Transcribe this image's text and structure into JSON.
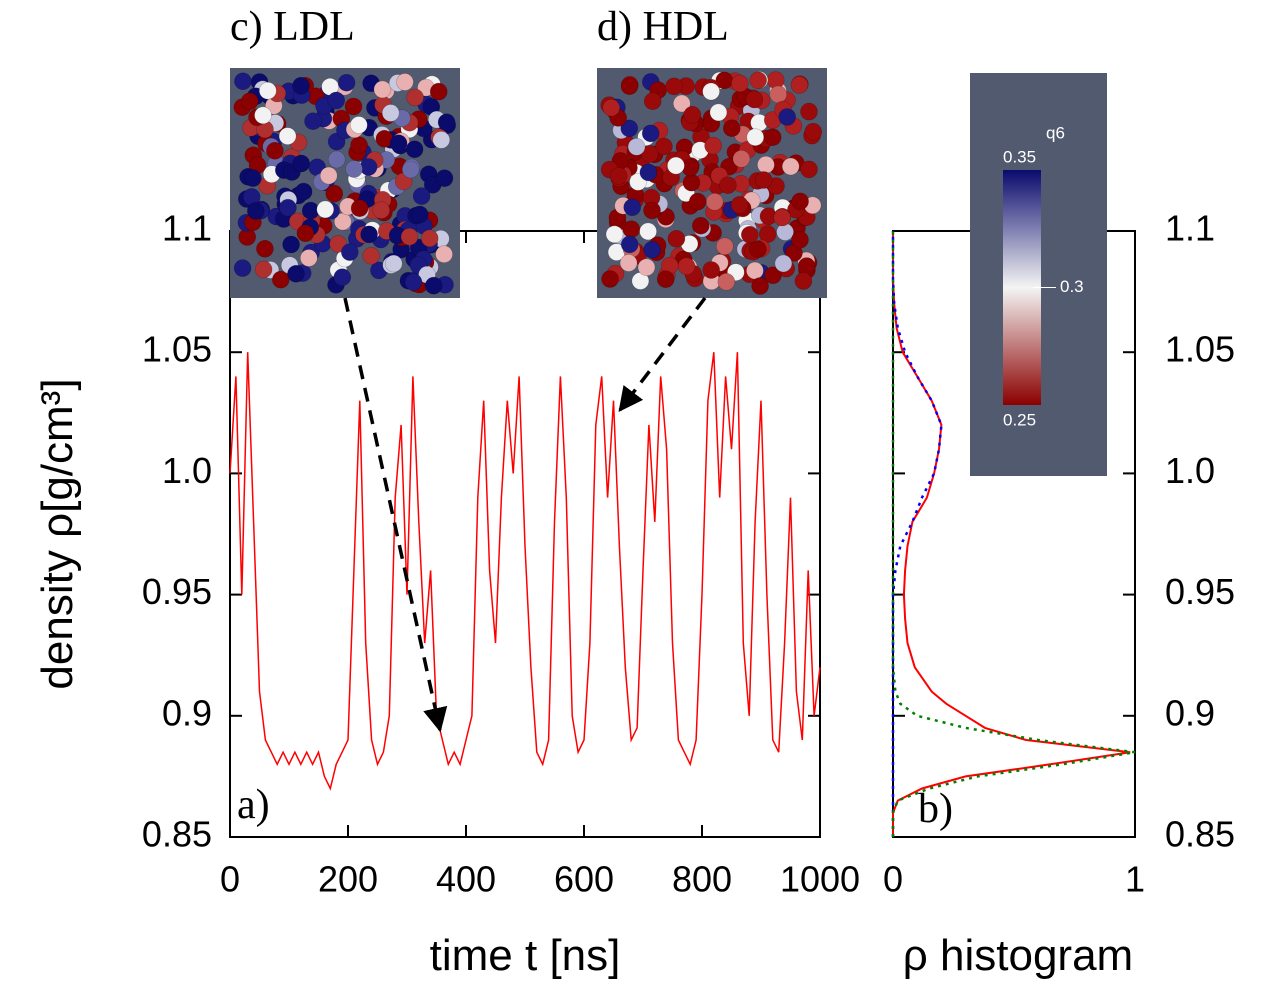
{
  "chart_data": [
    {
      "type": "line",
      "x": [
        0,
        10,
        20,
        30,
        40,
        50,
        60,
        70,
        80,
        90,
        100,
        110,
        120,
        130,
        140,
        150,
        160,
        170,
        180,
        190,
        200,
        210,
        220,
        230,
        240,
        250,
        260,
        270,
        280,
        290,
        300,
        310,
        320,
        330,
        340,
        350,
        360,
        370,
        380,
        390,
        400,
        410,
        420,
        430,
        440,
        450,
        460,
        470,
        480,
        490,
        500,
        510,
        520,
        530,
        540,
        550,
        560,
        570,
        580,
        590,
        600,
        610,
        620,
        630,
        640,
        650,
        660,
        670,
        680,
        690,
        700,
        710,
        720,
        730,
        740,
        750,
        760,
        770,
        780,
        790,
        800,
        810,
        820,
        830,
        840,
        850,
        860,
        870,
        880,
        890,
        900,
        910,
        920,
        930,
        940,
        950,
        960,
        970,
        980,
        990,
        1000
      ],
      "values": [
        1.0,
        1.04,
        0.95,
        1.05,
        0.98,
        0.91,
        0.89,
        0.885,
        0.88,
        0.885,
        0.88,
        0.885,
        0.88,
        0.885,
        0.88,
        0.885,
        0.875,
        0.87,
        0.88,
        0.885,
        0.89,
        0.96,
        1.03,
        0.93,
        0.89,
        0.88,
        0.885,
        0.9,
        0.99,
        1.02,
        0.95,
        1.04,
        0.98,
        0.93,
        0.96,
        0.9,
        0.89,
        0.88,
        0.885,
        0.88,
        0.89,
        0.9,
        0.99,
        1.03,
        0.96,
        0.93,
        0.99,
        1.03,
        1.0,
        1.04,
        0.97,
        0.92,
        0.885,
        0.88,
        0.89,
        0.98,
        1.04,
        0.99,
        0.9,
        0.885,
        0.89,
        0.93,
        1.02,
        1.04,
        0.99,
        1.03,
        0.97,
        0.92,
        0.89,
        0.895,
        0.96,
        1.02,
        0.98,
        1.04,
        1.01,
        0.93,
        0.89,
        0.885,
        0.88,
        0.89,
        0.95,
        1.03,
        1.05,
        0.99,
        1.04,
        1.01,
        1.05,
        0.93,
        0.9,
        0.98,
        1.03,
        0.95,
        0.89,
        0.885,
        0.93,
        0.99,
        0.91,
        0.89,
        0.96,
        0.9,
        0.92
      ],
      "color": "#ff0000",
      "xlabel": "time t [ns]",
      "ylabel": "density ρ[g/cm³]",
      "xlim": [
        0,
        1000
      ],
      "xticks": [
        0,
        200,
        400,
        600,
        800,
        1000
      ],
      "ylim": [
        0.85,
        1.1
      ],
      "yticks": [
        0.85,
        0.9,
        0.95,
        {
          "value": 1,
          "label": "1.0"
        },
        1.05,
        1.1
      ],
      "panel_label": "a)",
      "insets": [
        "c) LDL",
        "d) HDL"
      ]
    },
    {
      "type": "line",
      "orientation": "horizontal",
      "x": [
        0.85,
        0.86,
        0.865,
        0.87,
        0.875,
        0.88,
        0.885,
        0.89,
        0.895,
        0.9,
        0.905,
        0.91,
        0.92,
        0.93,
        0.94,
        0.95,
        0.96,
        0.97,
        0.98,
        0.99,
        1.0,
        1.01,
        1.02,
        1.03,
        1.04,
        1.05,
        1.06,
        1.07,
        1.08,
        1.1
      ],
      "xlim": [
        0.85,
        1.1
      ],
      "xticks": [
        0.85,
        0.9,
        0.95,
        {
          "value": 1,
          "label": "1.0"
        },
        1.05,
        1.1
      ],
      "ylim": [
        0,
        1
      ],
      "yticks": [
        0,
        1
      ],
      "ylabel": "ρ histogram",
      "panel_label": "b)",
      "series": [
        {
          "color": "#ff0000",
          "style": "solid",
          "values": [
            0,
            0,
            0.02,
            0.12,
            0.3,
            0.65,
            0.98,
            0.55,
            0.38,
            0.3,
            0.22,
            0.16,
            0.09,
            0.06,
            0.05,
            0.045,
            0.05,
            0.06,
            0.08,
            0.14,
            0.17,
            0.19,
            0.2,
            0.16,
            0.1,
            0.04,
            0.015,
            0.005,
            0,
            0
          ]
        },
        {
          "color": "#0000ff",
          "style": "dotted",
          "values": [
            0,
            0,
            0,
            0,
            0,
            0,
            0,
            0,
            0,
            0,
            0,
            0,
            0,
            0,
            0,
            0,
            0.01,
            0.03,
            0.08,
            0.12,
            0.17,
            0.19,
            0.2,
            0.16,
            0.1,
            0.05,
            0.02,
            0.005,
            0,
            0
          ]
        },
        {
          "color": "#008000",
          "style": "dotted",
          "values": [
            0,
            0,
            0.02,
            0.15,
            0.35,
            0.7,
            1.0,
            0.6,
            0.3,
            0.1,
            0.03,
            0.01,
            0,
            0,
            0,
            0,
            0,
            0,
            0,
            0,
            0,
            0,
            0,
            0,
            0,
            0,
            0,
            0,
            0,
            0
          ]
        }
      ],
      "colorbar": {
        "title": "q6",
        "lim": [
          0.25,
          0.35
        ],
        "ticks": [
          0.25,
          0.3,
          0.35
        ]
      }
    }
  ]
}
